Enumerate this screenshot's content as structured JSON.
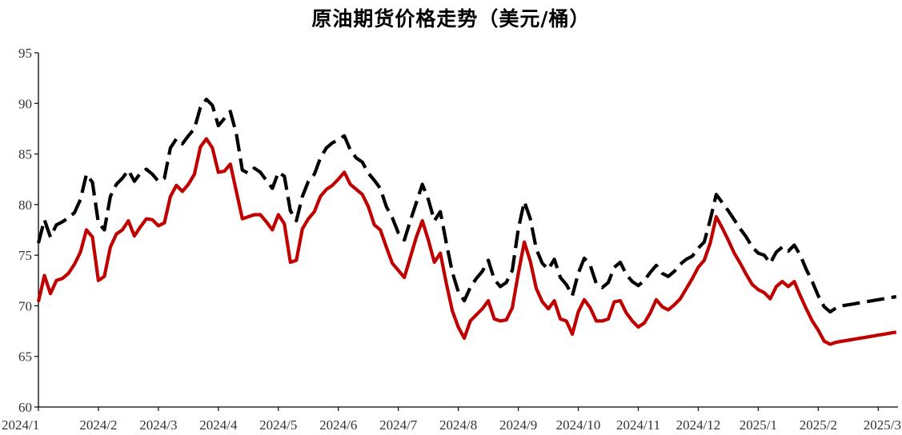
{
  "chart_data": {
    "type": "line",
    "title": "原油期货价格走势（美元/桶）",
    "xlabel": "",
    "ylabel": "",
    "ylim": [
      60,
      95
    ],
    "yticks": [
      60,
      65,
      70,
      75,
      80,
      85,
      90,
      95
    ],
    "xticks": [
      "2024/1",
      "2024/2",
      "2024/3",
      "2024/4",
      "2024/5",
      "2024/6",
      "2024/7",
      "2024/8",
      "2024/9",
      "2024/10",
      "2024/11",
      "2024/12",
      "2025/1",
      "2025/2",
      "2025/3"
    ],
    "x": [
      0.0,
      0.1,
      0.2,
      0.3,
      0.4,
      0.5,
      0.6,
      0.7,
      0.8,
      0.9,
      1.0,
      1.1,
      1.2,
      1.3,
      1.4,
      1.5,
      1.6,
      1.7,
      1.8,
      1.9,
      2.0,
      2.1,
      2.2,
      2.3,
      2.4,
      2.5,
      2.6,
      2.7,
      2.8,
      2.9,
      3.0,
      3.1,
      3.2,
      3.3,
      3.4,
      3.5,
      3.6,
      3.7,
      3.8,
      3.9,
      4.0,
      4.1,
      4.2,
      4.3,
      4.4,
      4.5,
      4.6,
      4.7,
      4.8,
      4.9,
      5.0,
      5.1,
      5.2,
      5.3,
      5.4,
      5.5,
      5.6,
      5.7,
      5.8,
      5.9,
      6.0,
      6.1,
      6.2,
      6.3,
      6.4,
      6.5,
      6.6,
      6.7,
      6.8,
      6.9,
      7.0,
      7.1,
      7.2,
      7.3,
      7.4,
      7.5,
      7.6,
      7.7,
      7.8,
      7.9,
      8.0,
      8.1,
      8.2,
      8.3,
      8.4,
      8.5,
      8.6,
      8.7,
      8.8,
      8.9,
      9.0,
      9.1,
      9.2,
      9.3,
      9.4,
      9.5,
      9.6,
      9.7,
      9.8,
      9.9,
      10.0,
      10.1,
      10.2,
      10.3,
      10.4,
      10.5,
      10.6,
      10.7,
      10.8,
      10.9,
      11.0,
      11.1,
      11.2,
      11.3,
      11.4,
      11.5,
      11.6,
      11.7,
      11.8,
      11.9,
      12.0,
      12.1,
      12.2,
      12.3,
      12.4,
      12.5,
      12.6,
      12.7,
      12.8,
      12.9,
      13.0,
      13.1,
      13.2,
      13.3,
      13.4,
      13.5,
      13.6,
      13.7,
      13.8,
      13.9,
      14.0,
      14.1,
      14.2,
      14.3
    ],
    "series": [
      {
        "color": "#000000",
        "dash": "dashed",
        "values": [
          76.2,
          78.5,
          76.8,
          78.0,
          78.3,
          78.7,
          79.2,
          80.5,
          83.0,
          82.2,
          78.2,
          77.5,
          80.8,
          82.0,
          82.6,
          83.4,
          82.3,
          83.1,
          83.5,
          83.0,
          82.3,
          82.6,
          85.6,
          86.5,
          86.0,
          86.8,
          87.5,
          89.6,
          90.4,
          89.8,
          87.8,
          88.5,
          89.2,
          87.0,
          83.4,
          83.1,
          83.6,
          83.2,
          82.4,
          81.6,
          83.2,
          82.8,
          79.4,
          78.4,
          80.8,
          82.3,
          83.0,
          84.6,
          85.6,
          86.1,
          86.4,
          86.8,
          85.4,
          84.6,
          84.2,
          83.1,
          82.4,
          81.6,
          79.8,
          78.7,
          77.2,
          76.5,
          78.4,
          80.2,
          82.0,
          80.5,
          78.4,
          79.3,
          76.2,
          73.3,
          71.4,
          70.5,
          71.8,
          72.7,
          73.4,
          74.5,
          72.6,
          71.9,
          72.3,
          73.5,
          77.6,
          80.3,
          78.6,
          75.6,
          74.2,
          73.6,
          74.6,
          72.8,
          72.1,
          71.0,
          73.2,
          74.7,
          74.0,
          72.2,
          71.8,
          72.3,
          73.8,
          74.3,
          73.1,
          72.4,
          72.0,
          72.5,
          73.3,
          74.0,
          73.2,
          72.9,
          73.4,
          74.1,
          74.6,
          74.9,
          75.7,
          76.3,
          78.5,
          81.0,
          80.2,
          79.4,
          78.5,
          77.6,
          76.8,
          75.8,
          75.2,
          75.0,
          74.2,
          75.3,
          75.8,
          75.4,
          76.0,
          75.0,
          73.6,
          72.4,
          71.0,
          69.9,
          69.4,
          69.8,
          70.0,
          70.1,
          70.2,
          70.3,
          70.4,
          70.5,
          70.6,
          70.7,
          70.8,
          70.9
        ]
      },
      {
        "color": "#c00000",
        "dash": "solid",
        "values": [
          70.4,
          73.0,
          71.2,
          72.5,
          72.7,
          73.2,
          74.1,
          75.3,
          77.5,
          76.8,
          72.5,
          72.9,
          75.8,
          77.1,
          77.5,
          78.4,
          76.9,
          77.8,
          78.6,
          78.5,
          77.9,
          78.2,
          80.8,
          81.9,
          81.3,
          82.0,
          83.0,
          85.7,
          86.5,
          85.6,
          83.2,
          83.3,
          84.0,
          81.3,
          78.6,
          78.8,
          79.0,
          79.0,
          78.3,
          77.5,
          79.0,
          78.1,
          74.3,
          74.5,
          77.6,
          78.6,
          79.3,
          80.8,
          81.5,
          81.9,
          82.5,
          83.2,
          82.0,
          81.5,
          81.0,
          79.8,
          78.0,
          77.5,
          75.8,
          74.2,
          73.5,
          72.8,
          74.8,
          76.8,
          78.4,
          76.5,
          74.3,
          75.2,
          72.2,
          69.5,
          67.9,
          66.8,
          68.5,
          69.1,
          69.7,
          70.5,
          68.7,
          68.5,
          68.6,
          69.8,
          73.2,
          76.3,
          74.4,
          71.7,
          70.4,
          69.7,
          70.5,
          68.7,
          68.5,
          67.2,
          69.4,
          70.6,
          69.8,
          68.5,
          68.5,
          68.7,
          70.4,
          70.5,
          69.3,
          68.5,
          67.9,
          68.3,
          69.3,
          70.6,
          69.9,
          69.6,
          70.1,
          70.7,
          71.7,
          72.7,
          73.8,
          74.5,
          76.2,
          78.8,
          77.7,
          76.5,
          75.2,
          74.2,
          73.1,
          72.1,
          71.6,
          71.3,
          70.7,
          71.9,
          72.4,
          71.9,
          72.4,
          71.0,
          69.7,
          68.5,
          67.6,
          66.5,
          66.2,
          66.4,
          66.5,
          66.6,
          66.7,
          66.8,
          66.9,
          67.0,
          67.1,
          67.2,
          67.3,
          67.4
        ]
      }
    ],
    "legend": "none",
    "grid": false
  }
}
